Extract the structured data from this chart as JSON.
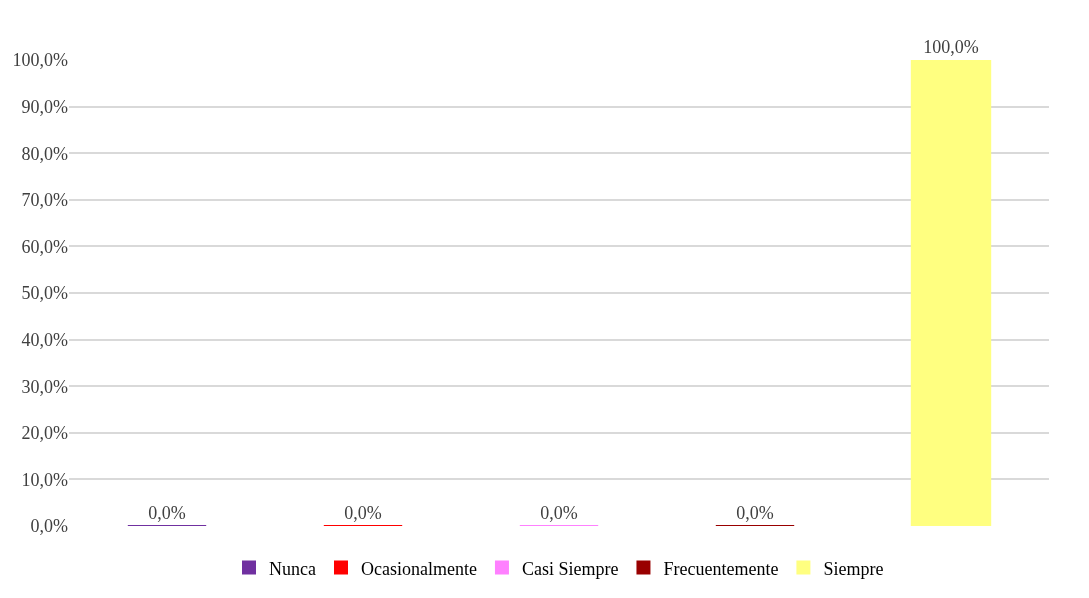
{
  "chart_data": {
    "type": "bar",
    "categories": [
      null,
      null,
      null,
      null,
      null
    ],
    "series": [
      {
        "name": "Nunca",
        "color": "#7030a0",
        "values": [
          0,
          null,
          null,
          null,
          null
        ],
        "value_labels": [
          "0,0%",
          null,
          null,
          null,
          null
        ]
      },
      {
        "name": "Ocasionalmente",
        "color": "#ff0000",
        "values": [
          null,
          0,
          null,
          null,
          null
        ],
        "value_labels": [
          null,
          "0,0%",
          null,
          null,
          null
        ]
      },
      {
        "name": "Casi Siempre",
        "color": "#ff80ff",
        "values": [
          null,
          null,
          0,
          null,
          null
        ],
        "value_labels": [
          null,
          null,
          "0,0%",
          null,
          null
        ]
      },
      {
        "name": "Frecuentemente",
        "color": "#990000",
        "values": [
          null,
          null,
          null,
          0,
          null
        ],
        "value_labels": [
          null,
          null,
          null,
          "0,0%",
          null
        ]
      },
      {
        "name": "Siempre",
        "color": "#ffff80",
        "values": [
          null,
          null,
          null,
          null,
          100
        ],
        "value_labels": [
          null,
          null,
          null,
          null,
          "100,0%"
        ]
      }
    ],
    "ylim": [
      0,
      100
    ],
    "yticks": [
      {
        "value": 0,
        "label": "0,0%"
      },
      {
        "value": 10,
        "label": "10,0%"
      },
      {
        "value": 20,
        "label": "20,0%"
      },
      {
        "value": 30,
        "label": "30,0%"
      },
      {
        "value": 40,
        "label": "40,0%"
      },
      {
        "value": 50,
        "label": "50,0%"
      },
      {
        "value": 60,
        "label": "60,0%"
      },
      {
        "value": 70,
        "label": "70,0%"
      },
      {
        "value": 80,
        "label": "80,0%"
      },
      {
        "value": 90,
        "label": "90,0%"
      },
      {
        "value": 100,
        "label": "100,0%"
      }
    ],
    "grid": "y",
    "legend": "bottom"
  }
}
